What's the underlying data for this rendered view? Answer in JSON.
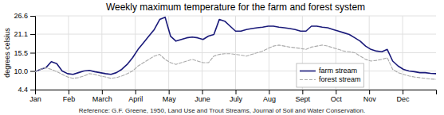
{
  "chart_data": {
    "type": "line",
    "title": "Weekly maximum temperature for the farm and forest system",
    "y_label": "degrees celsius",
    "annotations": [
      "Reference: G.F. Greene, 1950, Land Use and Trout Streams, Journal of Soil and Water Conservation."
    ],
    "x": [
      0,
      0.7027,
      1.4054,
      2.1081,
      2.8108,
      3.5135,
      4.2162,
      4.9189,
      5.6216,
      6.3243,
      7.027,
      7.7297,
      8.4324,
      9.1351,
      9.8378,
      10.5405,
      11.2432,
      11.9459,
      12.6486,
      13.3514,
      14.0541,
      14.7568,
      15.4595,
      16.1622,
      16.8649,
      17.5676,
      18.2703,
      18.973,
      19.6757,
      20.3784,
      21.0811,
      21.7838,
      22.4865,
      23.1892,
      23.8919,
      24.5946,
      25.2973,
      26,
      26.7027,
      27.4054,
      28.1081,
      28.8108,
      29.5135,
      30.2162,
      30.9189,
      31.6216,
      32.3243,
      33.027,
      33.7297,
      34.4324,
      35.1351,
      35.8378,
      36.5405,
      37.2432,
      37.9459,
      38.6486,
      39.3514,
      40.0541,
      40.7568,
      41.4595,
      42.1622,
      42.8649,
      43.5676,
      44.2703,
      44.973,
      45.6757,
      46.3784,
      47.0811,
      47.7838,
      48.4865,
      49.1892,
      49.8919,
      50.5946,
      51.2973,
      52
    ],
    "series": [
      {
        "name": "farm stream",
        "color": "#1a1a7a",
        "line_style": "solid",
        "values": [
          9.8,
          10.5,
          11.0,
          12.8,
          12.2,
          10.0,
          9.2,
          9.0,
          9.5,
          10.0,
          10.2,
          9.8,
          9.5,
          9.2,
          9.0,
          9.5,
          10.5,
          12.0,
          14.0,
          16.5,
          18.5,
          20.5,
          22.5,
          25.5,
          26.2,
          20.5,
          19.0,
          19.5,
          20.0,
          20.2,
          20.0,
          19.5,
          20.5,
          21.0,
          25.5,
          25.0,
          23.5,
          22.0,
          22.0,
          22.5,
          22.8,
          23.0,
          23.2,
          23.5,
          23.5,
          23.2,
          23.0,
          22.8,
          22.5,
          22.0,
          22.0,
          23.5,
          23.5,
          23.2,
          23.0,
          22.5,
          22.0,
          21.5,
          21.0,
          20.0,
          19.0,
          17.5,
          16.5,
          16.0,
          15.8,
          16.5,
          13.0,
          11.5,
          10.5,
          10.0,
          9.8,
          9.5,
          9.5,
          9.3,
          9.2
        ]
      },
      {
        "name": "forest stream",
        "color": "#aaaaaa",
        "line_style": "dashed",
        "values": [
          9.8,
          10.5,
          11.0,
          10.5,
          9.8,
          9.0,
          8.2,
          7.8,
          8.0,
          8.5,
          9.2,
          9.0,
          8.5,
          8.2,
          7.8,
          8.0,
          8.5,
          9.2,
          10.0,
          11.5,
          12.5,
          13.5,
          14.5,
          15.0,
          13.5,
          12.5,
          12.0,
          12.5,
          13.0,
          13.5,
          13.0,
          12.5,
          12.5,
          14.5,
          15.0,
          15.2,
          15.2,
          15.0,
          14.8,
          14.5,
          15.0,
          15.5,
          16.0,
          16.8,
          17.5,
          17.8,
          17.5,
          17.2,
          17.0,
          16.8,
          16.5,
          17.2,
          17.5,
          17.8,
          17.5,
          17.0,
          16.5,
          16.0,
          15.8,
          15.5,
          14.5,
          13.5,
          13.0,
          13.2,
          13.5,
          14.0,
          10.5,
          9.5,
          9.0,
          8.5,
          8.2,
          8.0,
          7.8,
          7.6,
          7.5
        ]
      }
    ],
    "xlim": [
      0,
      52
    ],
    "xticks": [
      {
        "value": 0,
        "label": "Jan"
      },
      {
        "value": 4.3333,
        "label": "Feb"
      },
      {
        "value": 8.6667,
        "label": "March"
      },
      {
        "value": 13,
        "label": "April"
      },
      {
        "value": 17.3333,
        "label": "May"
      },
      {
        "value": 21.6667,
        "label": "June"
      },
      {
        "value": 26,
        "label": "July"
      },
      {
        "value": 30.3333,
        "label": "Aug"
      },
      {
        "value": 34.6667,
        "label": "Sept"
      },
      {
        "value": 39,
        "label": "Oct"
      },
      {
        "value": 43.3333,
        "label": "Nov"
      },
      {
        "value": 47.6667,
        "label": "Dec"
      }
    ],
    "ylim": [
      4.4,
      26.6
    ],
    "yticks": [
      4.4,
      {
        "value": 10.0,
        "label": "10.0"
      },
      15.5,
      21.1,
      26.6
    ],
    "grid": true,
    "legend": "right"
  }
}
